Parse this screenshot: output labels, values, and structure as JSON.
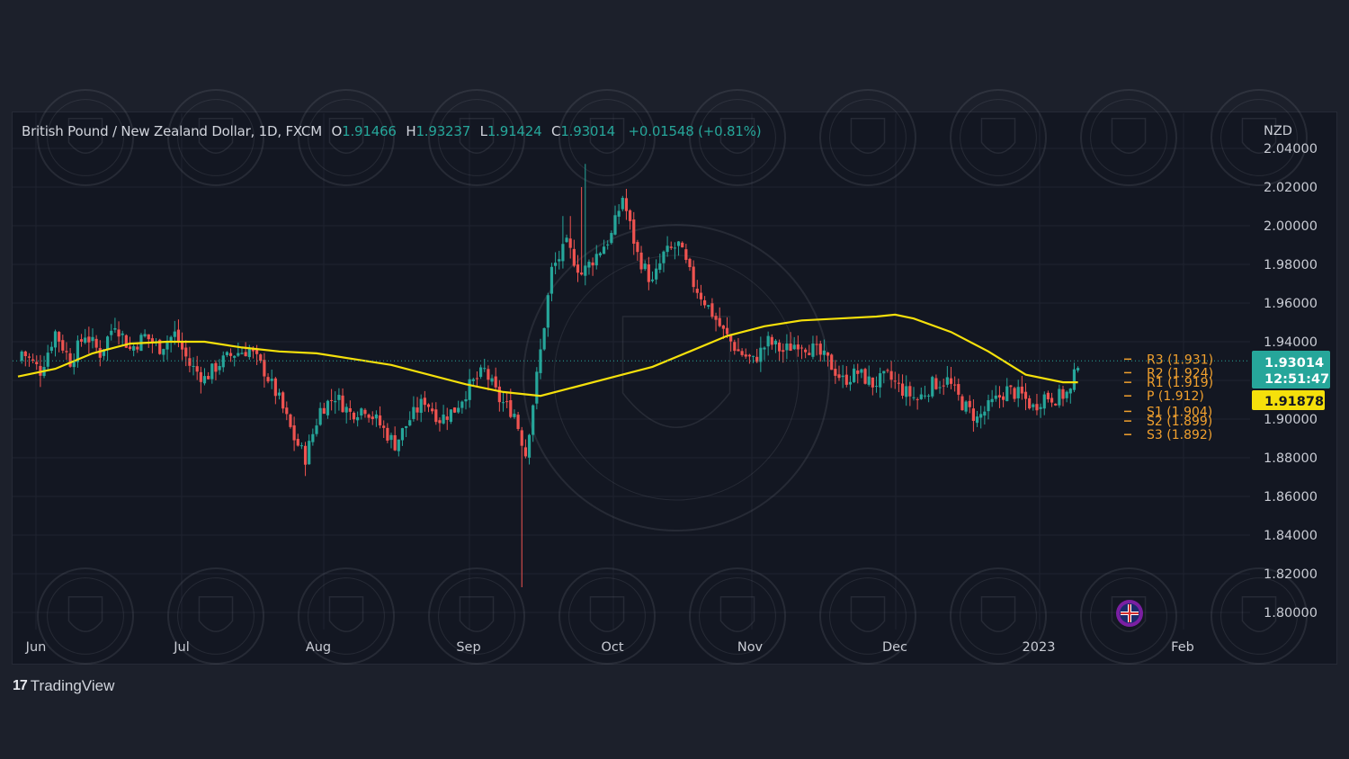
{
  "header": {
    "symbol": "British Pound / New Zealand Dollar, 1D, FXCM",
    "open_label": "O",
    "open": "1.91466",
    "high_label": "H",
    "high": "1.93237",
    "low_label": "L",
    "low": "1.91424",
    "close_label": "C",
    "close": "1.93014",
    "change": "+0.01548 (+0.81%)"
  },
  "price_axis": {
    "currency": "NZD",
    "ticks": [
      "2.04000",
      "2.02000",
      "2.00000",
      "1.98000",
      "1.96000",
      "1.94000",
      "1.90000",
      "1.88000",
      "1.86000",
      "1.84000",
      "1.82000",
      "1.80000"
    ]
  },
  "last_price_tag": {
    "price": "1.93014",
    "countdown": "12:51:47",
    "color": "#26a69a"
  },
  "ma_price_tag": {
    "price": "1.91878",
    "color": "#f5e00b"
  },
  "pivots": [
    {
      "label": "R3 (1.931)",
      "value": 1.931
    },
    {
      "label": "R2 (1.924)",
      "value": 1.924
    },
    {
      "label": "R1 (1.919)",
      "value": 1.919
    },
    {
      "label": "P (1.912)",
      "value": 1.912
    },
    {
      "label": "S1 (1.904)",
      "value": 1.904
    },
    {
      "label": "S2 (1.899)",
      "value": 1.899
    },
    {
      "label": "S3 (1.892)",
      "value": 1.892
    }
  ],
  "time_axis": [
    "Jun",
    "Jul",
    "Aug",
    "Sep",
    "Oct",
    "Nov",
    "Dec",
    "2023",
    "Feb"
  ],
  "footer": {
    "logo_text": "17",
    "brand": "TradingView"
  },
  "colors": {
    "up": "#26a69a",
    "down": "#ef5350",
    "ma": "#f5e00b",
    "pivot": "#f2a12e",
    "background": "#131722"
  },
  "chart_data": {
    "type": "candlestick",
    "title": "British Pound / New Zealand Dollar, 1D, FXCM",
    "ylim": [
      1.795,
      2.045
    ],
    "x_labels": [
      "Jun",
      "Jul",
      "Aug",
      "Sep",
      "Oct",
      "Nov",
      "Dec",
      "2023",
      "Feb"
    ],
    "grid": true,
    "candle_close_path": [
      [
        1,
        1.935
      ],
      [
        6,
        1.925
      ],
      [
        10,
        1.945
      ],
      [
        14,
        1.93
      ],
      [
        18,
        1.944
      ],
      [
        22,
        1.934
      ],
      [
        26,
        1.95
      ],
      [
        30,
        1.936
      ],
      [
        34,
        1.943
      ],
      [
        38,
        1.937
      ],
      [
        42,
        1.944
      ],
      [
        46,
        1.928
      ],
      [
        50,
        1.921
      ],
      [
        54,
        1.929
      ],
      [
        58,
        1.934
      ],
      [
        62,
        1.936
      ],
      [
        66,
        1.925
      ],
      [
        70,
        1.91
      ],
      [
        74,
        1.89
      ],
      [
        77,
        1.88
      ],
      [
        81,
        1.905
      ],
      [
        85,
        1.912
      ],
      [
        89,
        1.903
      ],
      [
        93,
        1.906
      ],
      [
        97,
        1.897
      ],
      [
        101,
        1.887
      ],
      [
        105,
        1.9
      ],
      [
        109,
        1.91
      ],
      [
        113,
        1.9
      ],
      [
        117,
        1.905
      ],
      [
        121,
        1.917
      ],
      [
        125,
        1.925
      ],
      [
        129,
        1.91
      ],
      [
        133,
        1.903
      ],
      [
        136,
        1.882
      ],
      [
        140,
        1.935
      ],
      [
        143,
        1.977
      ],
      [
        147,
        1.99
      ],
      [
        151,
        1.975
      ],
      [
        155,
        1.985
      ],
      [
        159,
        1.995
      ],
      [
        162,
        2.015
      ],
      [
        166,
        1.985
      ],
      [
        170,
        1.97
      ],
      [
        173,
        1.985
      ],
      [
        177,
        1.99
      ],
      [
        181,
        1.97
      ],
      [
        185,
        1.958
      ],
      [
        189,
        1.945
      ],
      [
        193,
        1.935
      ],
      [
        197,
        1.93
      ],
      [
        201,
        1.94
      ],
      [
        205,
        1.935
      ],
      [
        209,
        1.94
      ],
      [
        213,
        1.936
      ],
      [
        217,
        1.93
      ],
      [
        221,
        1.92
      ],
      [
        225,
        1.924
      ],
      [
        229,
        1.918
      ],
      [
        233,
        1.922
      ],
      [
        237,
        1.915
      ],
      [
        241,
        1.91
      ],
      [
        245,
        1.918
      ],
      [
        249,
        1.92
      ],
      [
        253,
        1.908
      ],
      [
        257,
        1.9
      ],
      [
        261,
        1.908
      ],
      [
        265,
        1.915
      ],
      [
        269,
        1.912
      ],
      [
        272,
        1.906
      ],
      [
        275,
        1.912
      ],
      [
        278,
        1.911
      ],
      [
        282,
        1.914
      ],
      [
        284,
        1.93
      ]
    ],
    "series": [
      {
        "name": "",
        "values_path": [
          [
            0,
            1.922
          ],
          [
            10,
            1.926
          ],
          [
            20,
            1.934
          ],
          [
            30,
            1.939
          ],
          [
            40,
            1.94
          ],
          [
            50,
            1.94
          ],
          [
            60,
            1.937
          ],
          [
            70,
            1.935
          ],
          [
            80,
            1.934
          ],
          [
            90,
            1.931
          ],
          [
            100,
            1.928
          ],
          [
            110,
            1.923
          ],
          [
            120,
            1.918
          ],
          [
            130,
            1.914
          ],
          [
            140,
            1.912
          ],
          [
            150,
            1.917
          ],
          [
            160,
            1.922
          ],
          [
            170,
            1.927
          ],
          [
            180,
            1.935
          ],
          [
            190,
            1.943
          ],
          [
            200,
            1.948
          ],
          [
            210,
            1.951
          ],
          [
            220,
            1.952
          ],
          [
            230,
            1.953
          ],
          [
            235,
            1.954
          ],
          [
            240,
            1.952
          ],
          [
            250,
            1.945
          ],
          [
            260,
            1.935
          ],
          [
            270,
            1.923
          ],
          [
            280,
            1.919
          ],
          [
            284,
            1.919
          ]
        ]
      }
    ]
  }
}
